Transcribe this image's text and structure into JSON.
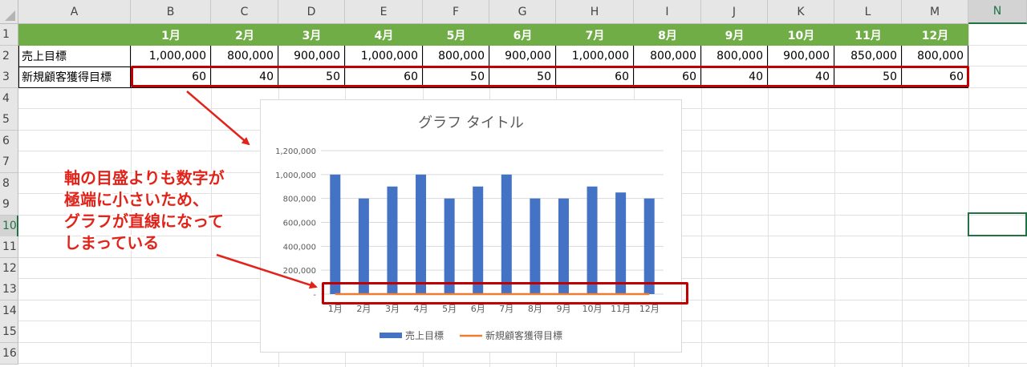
{
  "columns": [
    "A",
    "B",
    "C",
    "D",
    "E",
    "F",
    "G",
    "H",
    "I",
    "J",
    "K",
    "L",
    "M",
    "N"
  ],
  "rows": [
    "1",
    "2",
    "3",
    "4",
    "5",
    "6",
    "7",
    "8",
    "9",
    "10",
    "11",
    "12",
    "13",
    "14",
    "15",
    "16"
  ],
  "selected_row": "10",
  "selected_col": "N",
  "table": {
    "months": [
      "1月",
      "2月",
      "3月",
      "4月",
      "5月",
      "6月",
      "7月",
      "8月",
      "9月",
      "10月",
      "11月",
      "12月"
    ],
    "row2_label": "売上目標",
    "row2_values": [
      "1,000,000",
      "800,000",
      "900,000",
      "1,000,000",
      "800,000",
      "900,000",
      "1,000,000",
      "800,000",
      "800,000",
      "900,000",
      "850,000",
      "800,000"
    ],
    "row3_label": "新規顧客獲得目標",
    "row3_values": [
      "60",
      "40",
      "50",
      "60",
      "50",
      "50",
      "60",
      "60",
      "40",
      "40",
      "50",
      "60"
    ]
  },
  "annotation": {
    "lines": [
      "軸の目盛よりも数字が",
      "極端に小さいため、",
      "グラフが直線になって",
      "しまっている"
    ],
    "color": "#e2231a"
  },
  "chart_data": {
    "type": "bar",
    "title": "グラフ タイトル",
    "categories": [
      "1月",
      "2月",
      "3月",
      "4月",
      "5月",
      "6月",
      "7月",
      "8月",
      "9月",
      "10月",
      "11月",
      "12月"
    ],
    "series": [
      {
        "name": "売上目標",
        "type": "bar",
        "color": "#4472c4",
        "values": [
          1000000,
          800000,
          900000,
          1000000,
          800000,
          900000,
          1000000,
          800000,
          800000,
          900000,
          850000,
          800000
        ]
      },
      {
        "name": "新規顧客獲得目標",
        "type": "line",
        "color": "#ed7d31",
        "values": [
          60,
          40,
          50,
          60,
          50,
          50,
          60,
          60,
          40,
          40,
          50,
          60
        ]
      }
    ],
    "ylim": [
      0,
      1200000
    ],
    "yticks": [
      "-",
      "200,000",
      "400,000",
      "600,000",
      "800,000",
      "1,000,000",
      "1,200,000"
    ],
    "grid": true,
    "legend": "bottom"
  }
}
